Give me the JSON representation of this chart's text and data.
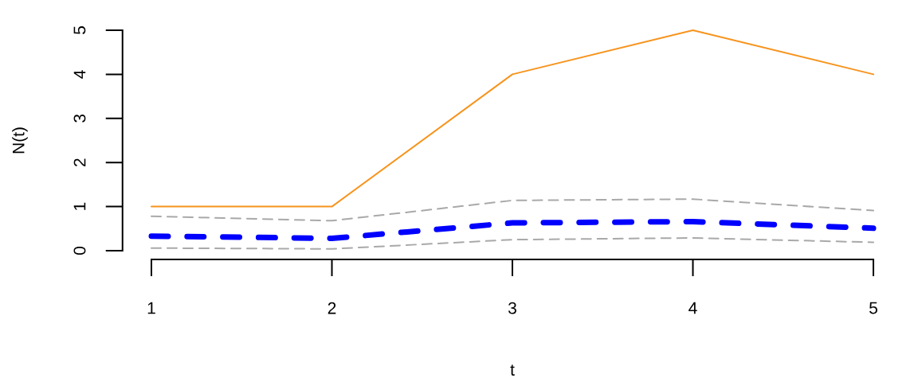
{
  "chart_data": {
    "type": "line",
    "xlabel": "t",
    "ylabel": "N(t)",
    "x": [
      1,
      2,
      3,
      4,
      5
    ],
    "series": [
      {
        "color": "#f7941d",
        "line_style": "solid",
        "values": [
          1,
          1,
          4,
          5,
          4
        ]
      },
      {
        "color": "#a9a9a9",
        "line_style": "dashed",
        "values": [
          0.78,
          0.68,
          1.14,
          1.17,
          0.91
        ]
      },
      {
        "color": "#a9a9a9",
        "line_style": "dashed",
        "values": [
          0.06,
          0.04,
          0.25,
          0.29,
          0.19
        ]
      },
      {
        "color": "#0000ff",
        "line_style": "dashed",
        "values": [
          0.33,
          0.28,
          0.63,
          0.66,
          0.51
        ]
      }
    ],
    "xlim": [
      1,
      5
    ],
    "ylim": [
      0,
      5
    ],
    "xticks": [
      1,
      2,
      3,
      4,
      5
    ],
    "yticks": [
      0,
      1,
      2,
      3,
      4,
      5
    ],
    "grid": false,
    "legend": false,
    "marker": "none"
  }
}
